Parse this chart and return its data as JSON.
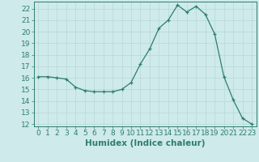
{
  "x": [
    0,
    1,
    2,
    3,
    4,
    5,
    6,
    7,
    8,
    9,
    10,
    11,
    12,
    13,
    14,
    15,
    16,
    17,
    18,
    19,
    20,
    21,
    22,
    23
  ],
  "y": [
    16.1,
    16.1,
    16.0,
    15.9,
    15.2,
    14.9,
    14.8,
    14.8,
    14.8,
    15.0,
    15.6,
    17.2,
    18.5,
    20.3,
    21.0,
    22.3,
    21.7,
    22.2,
    21.5,
    19.8,
    16.1,
    14.1,
    12.5,
    12.0
  ],
  "ylim": [
    11.8,
    22.6
  ],
  "xlim": [
    -0.5,
    23.5
  ],
  "yticks": [
    12,
    13,
    14,
    15,
    16,
    17,
    18,
    19,
    20,
    21,
    22
  ],
  "xticks": [
    0,
    1,
    2,
    3,
    4,
    5,
    6,
    7,
    8,
    9,
    10,
    11,
    12,
    13,
    14,
    15,
    16,
    17,
    18,
    19,
    20,
    21,
    22,
    23
  ],
  "xlabel": "Humidex (Indice chaleur)",
  "line_color": "#2e7d6e",
  "marker": "+",
  "marker_size": 3,
  "bg_color": "#ceeaea",
  "grid_color": "#b8d8d8",
  "tick_color": "#2e7d6e",
  "label_color": "#2e7d6e",
  "xlabel_fontsize": 7.5,
  "tick_fontsize": 6.5
}
